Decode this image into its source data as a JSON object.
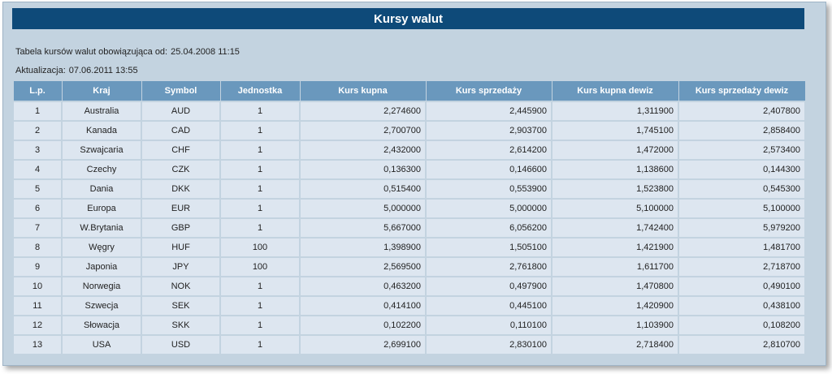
{
  "title": "Kursy walut",
  "info": {
    "valid_label": "Tabela kursów walut obowiązująca od:",
    "valid_value": "25.04.2008 11:15",
    "update_label": "Aktualizacja:",
    "update_value": "07.06.2011 13:55"
  },
  "table": {
    "headers": [
      "L.p.",
      "Kraj",
      "Symbol",
      "Jednostka",
      "Kurs kupna",
      "Kurs sprzedaży",
      "Kurs kupna dewiz",
      "Kurs sprzedaży dewiz"
    ],
    "rows": [
      [
        "1",
        "Australia",
        "AUD",
        "1",
        "2,274600",
        "2,445900",
        "1,311900",
        "2,407800"
      ],
      [
        "2",
        "Kanada",
        "CAD",
        "1",
        "2,700700",
        "2,903700",
        "1,745100",
        "2,858400"
      ],
      [
        "3",
        "Szwajcaria",
        "CHF",
        "1",
        "2,432000",
        "2,614200",
        "1,472000",
        "2,573400"
      ],
      [
        "4",
        "Czechy",
        "CZK",
        "1",
        "0,136300",
        "0,146600",
        "1,138600",
        "0,144300"
      ],
      [
        "5",
        "Dania",
        "DKK",
        "1",
        "0,515400",
        "0,553900",
        "1,523800",
        "0,545300"
      ],
      [
        "6",
        "Europa",
        "EUR",
        "1",
        "5,000000",
        "5,000000",
        "5,100000",
        "5,100000"
      ],
      [
        "7",
        "W.Brytania",
        "GBP",
        "1",
        "5,667000",
        "6,056200",
        "1,742400",
        "5,979200"
      ],
      [
        "8",
        "Węgry",
        "HUF",
        "100",
        "1,398900",
        "1,505100",
        "1,421900",
        "1,481700"
      ],
      [
        "9",
        "Japonia",
        "JPY",
        "100",
        "2,569500",
        "2,761800",
        "1,611700",
        "2,718700"
      ],
      [
        "10",
        "Norwegia",
        "NOK",
        "1",
        "0,463200",
        "0,497900",
        "1,470800",
        "0,490100"
      ],
      [
        "11",
        "Szwecja",
        "SEK",
        "1",
        "0,414100",
        "0,445100",
        "1,420900",
        "0,438100"
      ],
      [
        "12",
        "Słowacja",
        "SKK",
        "1",
        "0,102200",
        "0,110100",
        "1,103900",
        "0,108200"
      ],
      [
        "13",
        "USA",
        "USD",
        "1",
        "2,699100",
        "2,830100",
        "2,718400",
        "2,810700"
      ]
    ]
  }
}
